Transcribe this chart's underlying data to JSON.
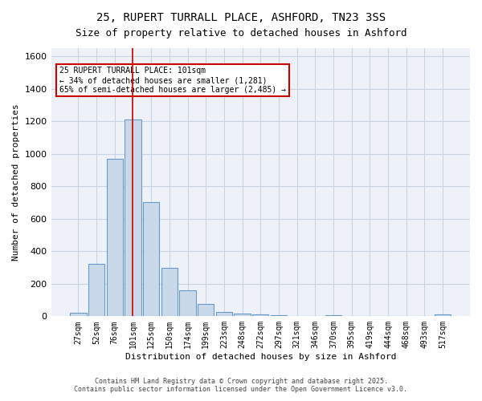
{
  "title1": "25, RUPERT TURRALL PLACE, ASHFORD, TN23 3SS",
  "title2": "Size of property relative to detached houses in Ashford",
  "xlabel": "Distribution of detached houses by size in Ashford",
  "ylabel": "Number of detached properties",
  "categories": [
    "27sqm",
    "52sqm",
    "76sqm",
    "101sqm",
    "125sqm",
    "150sqm",
    "174sqm",
    "199sqm",
    "223sqm",
    "248sqm",
    "272sqm",
    "297sqm",
    "321sqm",
    "346sqm",
    "370sqm",
    "395sqm",
    "419sqm",
    "444sqm",
    "468sqm",
    "493sqm",
    "517sqm"
  ],
  "bar_values": [
    20,
    320,
    970,
    1210,
    700,
    300,
    160,
    75,
    25,
    15,
    10,
    5,
    0,
    0,
    5,
    0,
    0,
    0,
    0,
    0,
    10
  ],
  "bar_color": "#c9d9ea",
  "bar_edge_color": "#6699cc",
  "grid_color": "#c8d4e3",
  "background_color": "#eef2f8",
  "red_line_index": 3,
  "annotation_text": "25 RUPERT TURRALL PLACE: 101sqm\n← 34% of detached houses are smaller (1,281)\n65% of semi-detached houses are larger (2,485) →",
  "annotation_box_color": "#ffffff",
  "annotation_border_color": "#cc0000",
  "ylim": [
    0,
    1650
  ],
  "yticks": [
    0,
    200,
    400,
    600,
    800,
    1000,
    1200,
    1400,
    1600
  ],
  "footer1": "Contains HM Land Registry data © Crown copyright and database right 2025.",
  "footer2": "Contains public sector information licensed under the Open Government Licence v3.0."
}
